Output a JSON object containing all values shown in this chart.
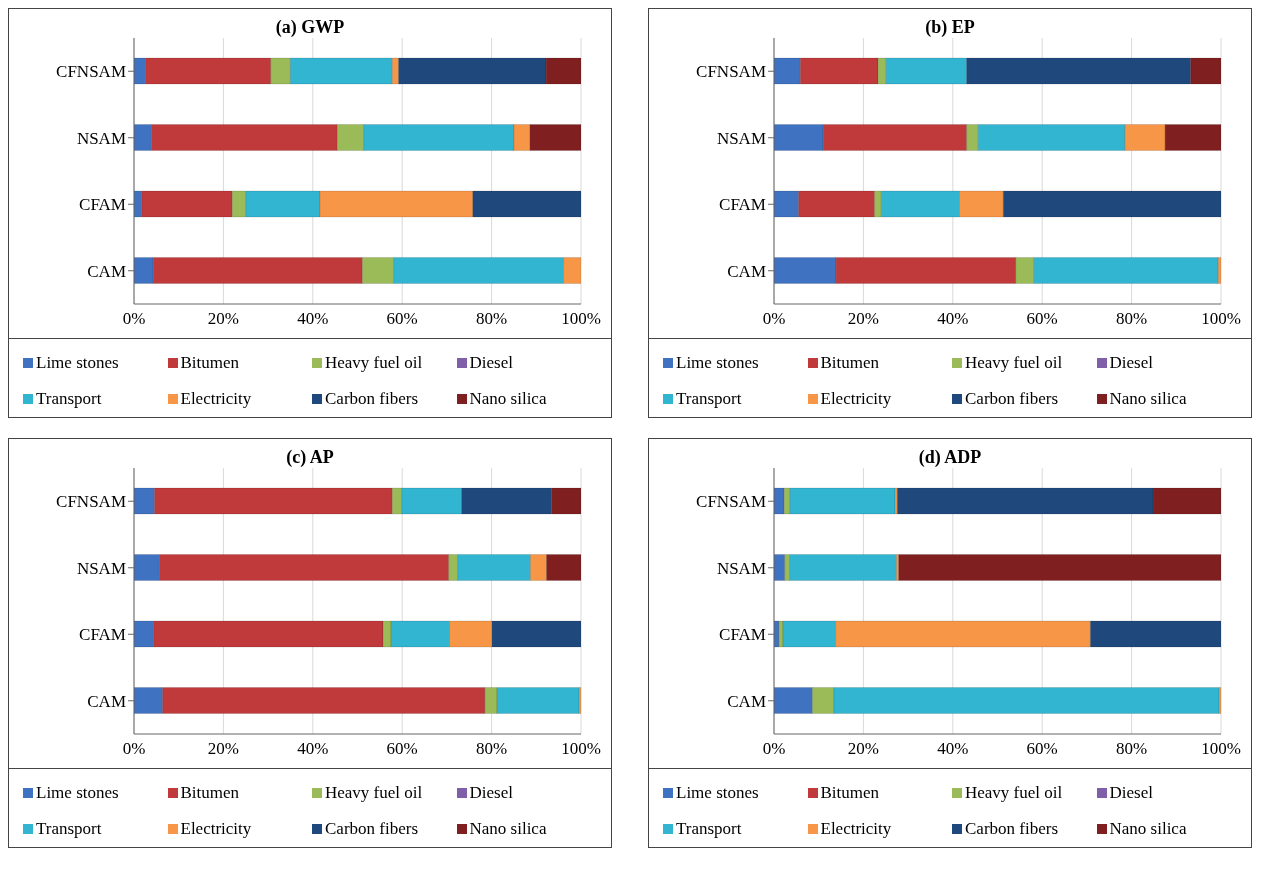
{
  "chart_data": [
    {
      "type": "bar",
      "title": "(a) GWP",
      "orientation": "horizontal",
      "stacked": true,
      "categories": [
        "CFNSAM",
        "NSAM",
        "CFAM",
        "CAM"
      ],
      "xlim": [
        0,
        100
      ],
      "xticks": [
        {
          "value": 0,
          "label": "0%"
        },
        {
          "value": 20,
          "label": "20%"
        },
        {
          "value": 40,
          "label": "40%"
        },
        {
          "value": 60,
          "label": "60%"
        },
        {
          "value": 80,
          "label": "80%"
        },
        {
          "value": 100,
          "label": "100%"
        }
      ],
      "grid": "x",
      "legend": "bottom",
      "series": [
        {
          "name": "Lime stones",
          "color": "#3f72c0",
          "values": [
            2.6,
            3.9,
            1.7,
            4.3
          ]
        },
        {
          "name": "Bitumen",
          "color": "#c0393b",
          "values": [
            28,
            41.6,
            20.3,
            46.8
          ]
        },
        {
          "name": "Heavy fuel oil",
          "color": "#9bbb59",
          "values": [
            4.4,
            5.9,
            3.0,
            7.0
          ]
        },
        {
          "name": "Diesel",
          "color": "#7f5fa8",
          "values": [
            0,
            0,
            0,
            0
          ]
        },
        {
          "name": "Transport",
          "color": "#31b5d0",
          "values": [
            22.8,
            33.6,
            16.6,
            38.0
          ]
        },
        {
          "name": "Electricity",
          "color": "#f79646",
          "values": [
            1.4,
            3.6,
            34.2,
            3.9
          ]
        },
        {
          "name": "Carbon fibers",
          "color": "#1f497d",
          "values": [
            33,
            0,
            24.2,
            0
          ]
        },
        {
          "name": "Nano silica",
          "color": "#7f1f1f",
          "values": [
            7.8,
            11.4,
            0,
            0
          ]
        }
      ]
    },
    {
      "type": "bar",
      "title": "(b) EP",
      "orientation": "horizontal",
      "stacked": true,
      "categories": [
        "CFNSAM",
        "NSAM",
        "CFAM",
        "CAM"
      ],
      "xlim": [
        0,
        100
      ],
      "xticks": [
        {
          "value": 0,
          "label": "0%"
        },
        {
          "value": 20,
          "label": "20%"
        },
        {
          "value": 40,
          "label": "40%"
        },
        {
          "value": 60,
          "label": "60%"
        },
        {
          "value": 80,
          "label": "80%"
        },
        {
          "value": 100,
          "label": "100%"
        }
      ],
      "grid": "x",
      "legend": "bottom",
      "series": [
        {
          "name": "Lime stones",
          "color": "#3f72c0",
          "values": [
            5.9,
            11.0,
            5.5,
            13.9
          ]
        },
        {
          "name": "Bitumen",
          "color": "#c0393b",
          "values": [
            17.4,
            32.1,
            17.0,
            40.2
          ]
        },
        {
          "name": "Heavy fuel oil",
          "color": "#9bbb59",
          "values": [
            1.8,
            2.6,
            1.5,
            4.1
          ]
        },
        {
          "name": "Diesel",
          "color": "#7f5fa8",
          "values": [
            0,
            0,
            0,
            0
          ]
        },
        {
          "name": "Transport",
          "color": "#31b5d0",
          "values": [
            18.0,
            32.8,
            17.5,
            41.2
          ]
        },
        {
          "name": "Electricity",
          "color": "#f79646",
          "values": [
            0,
            9.0,
            9.8,
            0.6
          ]
        },
        {
          "name": "Carbon fibers",
          "color": "#1f497d",
          "values": [
            50.1,
            0,
            48.7,
            0
          ]
        },
        {
          "name": "Nano silica",
          "color": "#7f1f1f",
          "values": [
            6.8,
            12.5,
            0,
            0
          ]
        }
      ]
    },
    {
      "type": "bar",
      "title": "(c) AP",
      "orientation": "horizontal",
      "stacked": true,
      "categories": [
        "CFNSAM",
        "NSAM",
        "CFAM",
        "CAM"
      ],
      "xlim": [
        0,
        100
      ],
      "xticks": [
        {
          "value": 0,
          "label": "0%"
        },
        {
          "value": 20,
          "label": "20%"
        },
        {
          "value": 40,
          "label": "40%"
        },
        {
          "value": 60,
          "label": "60%"
        },
        {
          "value": 80,
          "label": "80%"
        },
        {
          "value": 100,
          "label": "100%"
        }
      ],
      "grid": "x",
      "legend": "bottom",
      "series": [
        {
          "name": "Lime stones",
          "color": "#3f72c0",
          "values": [
            4.6,
            5.7,
            4.4,
            6.4
          ]
        },
        {
          "name": "Bitumen",
          "color": "#c0393b",
          "values": [
            53.2,
            64.7,
            51.3,
            72.1
          ]
        },
        {
          "name": "Heavy fuel oil",
          "color": "#9bbb59",
          "values": [
            2.1,
            2.0,
            1.8,
            2.7
          ]
        },
        {
          "name": "Diesel",
          "color": "#7f5fa8",
          "values": [
            0,
            0,
            0,
            0
          ]
        },
        {
          "name": "Transport",
          "color": "#31b5d0",
          "values": [
            13.4,
            16.3,
            13.1,
            18.4
          ]
        },
        {
          "name": "Electricity",
          "color": "#f79646",
          "values": [
            0,
            3.6,
            9.5,
            0.4
          ]
        },
        {
          "name": "Carbon fibers",
          "color": "#1f497d",
          "values": [
            20.1,
            0,
            19.9,
            0
          ]
        },
        {
          "name": "Nano silica",
          "color": "#7f1f1f",
          "values": [
            6.6,
            7.7,
            0,
            0
          ]
        }
      ]
    },
    {
      "type": "bar",
      "title": "(d) ADP",
      "orientation": "horizontal",
      "stacked": true,
      "categories": [
        "CFNSAM",
        "NSAM",
        "CFAM",
        "CAM"
      ],
      "xlim": [
        0,
        100
      ],
      "xticks": [
        {
          "value": 0,
          "label": "0%"
        },
        {
          "value": 20,
          "label": "20%"
        },
        {
          "value": 40,
          "label": "40%"
        },
        {
          "value": 60,
          "label": "60%"
        },
        {
          "value": 80,
          "label": "80%"
        },
        {
          "value": 100,
          "label": "100%"
        }
      ],
      "grid": "x",
      "legend": "bottom",
      "series": [
        {
          "name": "Lime stones",
          "color": "#3f72c0",
          "values": [
            2.3,
            2.4,
            1.1,
            8.6
          ]
        },
        {
          "name": "Bitumen",
          "color": "#c0393b",
          "values": [
            0,
            0,
            0,
            0
          ]
        },
        {
          "name": "Heavy fuel oil",
          "color": "#9bbb59",
          "values": [
            1.3,
            1.1,
            0.9,
            4.8
          ]
        },
        {
          "name": "Diesel",
          "color": "#7f5fa8",
          "values": [
            0,
            0,
            0,
            0
          ]
        },
        {
          "name": "Transport",
          "color": "#31b5d0",
          "values": [
            23.5,
            23.9,
            11.8,
            86.2
          ]
        },
        {
          "name": "Electricity",
          "color": "#f79646",
          "values": [
            0.5,
            0.5,
            57.0,
            0.4
          ]
        },
        {
          "name": "Carbon fibers",
          "color": "#1f497d",
          "values": [
            57.2,
            0,
            29.2,
            0
          ]
        },
        {
          "name": "Nano silica",
          "color": "#7f1f1f",
          "values": [
            15.2,
            72.1,
            0,
            0
          ]
        }
      ]
    }
  ]
}
